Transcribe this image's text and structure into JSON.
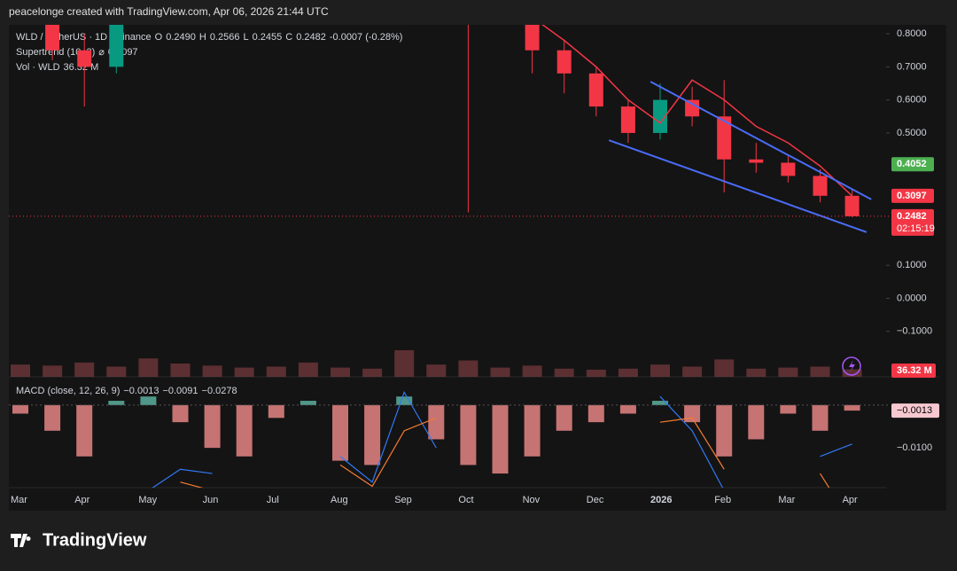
{
  "header": "peacelonge created with TradingView.com, Apr 06, 2026 21:44 UTC",
  "brand": "TradingView",
  "chart_data": {
    "type": "candlestick",
    "symbol": "WLD / TetherUS · 1D · Binance",
    "ohlc_legend": [
      {
        "label": "O",
        "value": "0.2490"
      },
      {
        "label": "H",
        "value": "0.2566"
      },
      {
        "label": "L",
        "value": "0.2455"
      },
      {
        "label": "C",
        "value": "0.2482"
      }
    ],
    "change": "-0.0007 (-0.28%)",
    "categories": [
      "Mar",
      null,
      "Apr",
      null,
      "May",
      null,
      "Jun",
      null,
      "Jul",
      null,
      "Aug",
      null,
      "Sep",
      null,
      "Oct",
      null,
      "Nov",
      null,
      "Dec",
      null,
      "2026",
      null,
      "Feb",
      null,
      "Mar",
      null,
      "Apr"
    ],
    "open": [
      0.95,
      0.9,
      0.75,
      0.7,
      0.9,
      1.25,
      1.1,
      1.0,
      0.92,
      1.05,
      1.15,
      1.0,
      0.98,
      1.55,
      1.35,
      0.95,
      0.9,
      0.75,
      0.68,
      0.58,
      0.5,
      0.6,
      0.55,
      0.42,
      0.41,
      0.37,
      0.31
    ],
    "high": [
      1.05,
      0.98,
      0.8,
      0.95,
      1.35,
      1.4,
      1.25,
      1.05,
      1.1,
      1.35,
      1.2,
      1.1,
      1.7,
      1.65,
      1.45,
      1.05,
      0.92,
      0.78,
      0.7,
      0.6,
      0.65,
      0.64,
      0.66,
      0.47,
      0.43,
      0.39,
      0.33
    ],
    "low": [
      0.85,
      0.72,
      0.58,
      0.68,
      0.88,
      1.05,
      0.95,
      0.85,
      0.9,
      1.0,
      0.95,
      0.92,
      0.95,
      1.25,
      0.26,
      0.85,
      0.68,
      0.62,
      0.55,
      0.47,
      0.48,
      0.52,
      0.32,
      0.38,
      0.35,
      0.29,
      0.2455
    ],
    "close": [
      0.9,
      0.75,
      0.7,
      0.9,
      1.25,
      1.1,
      1.0,
      0.92,
      1.05,
      1.15,
      1.0,
      0.98,
      1.55,
      1.35,
      0.95,
      0.9,
      0.75,
      0.68,
      0.58,
      0.5,
      0.6,
      0.55,
      0.42,
      0.41,
      0.37,
      0.31,
      0.2482
    ],
    "up_color": "#089981",
    "down_color": "#f23645",
    "ylim": [
      -0.2375,
      0.827
    ],
    "yticks": [
      {
        "value": 0.8,
        "label": "0.8000"
      },
      {
        "value": 0.7,
        "label": "0.7000"
      },
      {
        "value": 0.6,
        "label": "0.6000"
      },
      {
        "value": 0.5,
        "label": "0.5000"
      },
      {
        "value": 0.1,
        "label": "0.1000"
      },
      {
        "value": 0,
        "label": "0.0000"
      },
      {
        "value": -0.1,
        "label": "−0.1000"
      }
    ],
    "supertrend": {
      "name": "Supertrend (10, 3)",
      "symbol": "⌀",
      "value_label": "0.3097",
      "color": "#f23645",
      "values": [
        null,
        null,
        null,
        null,
        null,
        null,
        null,
        null,
        null,
        null,
        null,
        null,
        null,
        null,
        null,
        null,
        0.85,
        0.78,
        0.7,
        0.6,
        0.53,
        0.66,
        0.6,
        0.52,
        0.47,
        0.4,
        0.3097
      ]
    },
    "trendlines": [
      {
        "color": "#4a6cf7",
        "x": [
          20.2,
          27.1
        ],
        "values": [
          0.655,
          0.299
        ]
      },
      {
        "color": "#4a6cf7",
        "x": [
          18.9,
          26.95
        ],
        "values": [
          0.478,
          0.2
        ]
      }
    ],
    "price_tags": [
      {
        "value": 0.4052,
        "label": "0.4052",
        "color": "#4caf50"
      },
      {
        "value": 0.3097,
        "label": "0.3097",
        "color": "#f23645"
      },
      {
        "value": 0.2482,
        "label": "0.2482",
        "color": "#f23645",
        "countdown": "02:15:19"
      }
    ],
    "volume": {
      "name": "Vol · WLD",
      "value_label": "36.32 M",
      "color": "#7a3a3f",
      "values": [
        60,
        55,
        70,
        50,
        90,
        65,
        55,
        45,
        50,
        70,
        45,
        40,
        130,
        60,
        80,
        45,
        55,
        40,
        35,
        40,
        60,
        50,
        85,
        40,
        45,
        50,
        36.32
      ]
    },
    "macd": {
      "name": "MACD (close, 12, 26, 9)",
      "labels": [
        "−0.0013",
        "−0.0091",
        "−0.0278"
      ],
      "hist_up": "#5fb8a8",
      "hist_down": "#f28b8b",
      "histogram": [
        -0.002,
        -0.006,
        -0.012,
        0.001,
        0.002,
        -0.004,
        -0.01,
        -0.012,
        -0.003,
        0.001,
        -0.013,
        -0.014,
        0.002,
        -0.008,
        -0.014,
        -0.016,
        -0.012,
        -0.006,
        -0.004,
        -0.002,
        0.001,
        -0.004,
        -0.012,
        -0.008,
        -0.002,
        -0.006,
        -0.0013
      ],
      "macd_line": [
        null,
        null,
        null,
        null,
        -0.02,
        -0.015,
        -0.016,
        null,
        null,
        null,
        -0.012,
        -0.018,
        0.003,
        -0.01,
        null,
        null,
        null,
        null,
        null,
        null,
        0.002,
        -0.006,
        -0.02,
        null,
        null,
        -0.012,
        -0.0091
      ],
      "macd_color": "#3179f5",
      "signal_line": [
        null,
        null,
        null,
        null,
        null,
        -0.018,
        -0.02,
        null,
        null,
        null,
        -0.014,
        -0.019,
        -0.006,
        -0.003,
        null,
        null,
        null,
        null,
        null,
        null,
        -0.004,
        -0.003,
        -0.015,
        null,
        null,
        -0.016,
        -0.0278
      ],
      "signal_color": "#f57c31",
      "tag_label": "−0.0013",
      "tag_value": -0.0013,
      "y2lim": [
        -0.0193,
        0.0066
      ],
      "y2ticks": [
        {
          "value": -0.01,
          "label": "−0.0100"
        }
      ]
    }
  }
}
